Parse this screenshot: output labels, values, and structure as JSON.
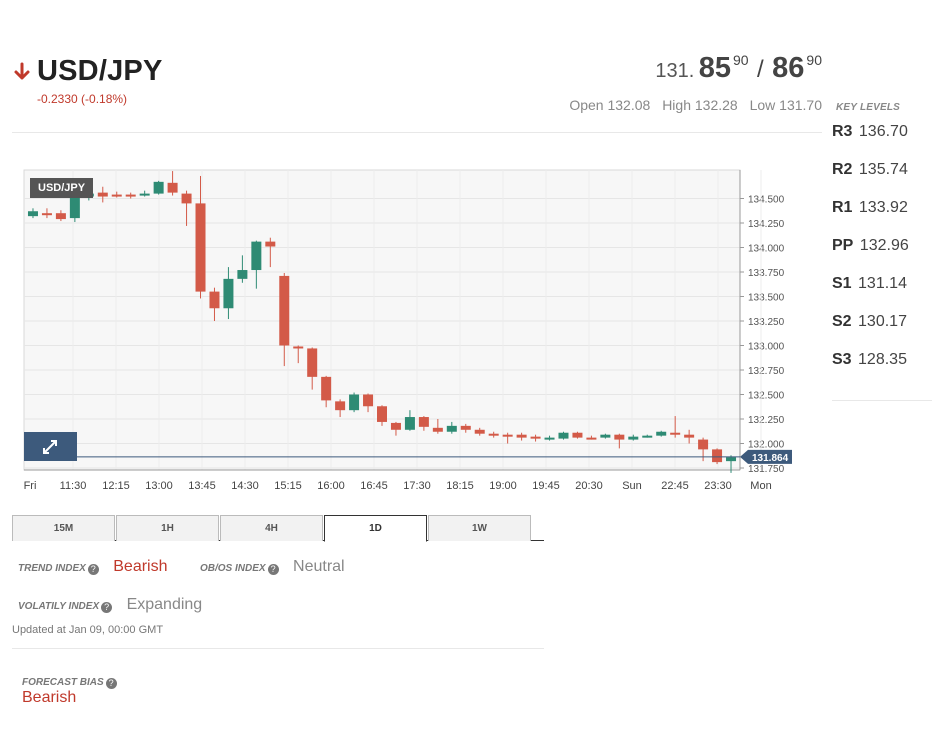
{
  "header": {
    "pair": "USD/JPY",
    "change": "-0.2330 (-0.18%)",
    "bid_prefix": "131.",
    "bid_big": "85",
    "bid_sup": "90",
    "separator": "/",
    "ask_big": "86",
    "ask_sup": "90",
    "open": "Open 132.08",
    "high": "High 132.28",
    "low": "Low 131.70"
  },
  "key_levels": {
    "title": "KEY LEVELS",
    "items": [
      {
        "name": "R3",
        "value": "136.70"
      },
      {
        "name": "R2",
        "value": "135.74"
      },
      {
        "name": "R1",
        "value": "133.92"
      },
      {
        "name": "PP",
        "value": "132.96"
      },
      {
        "name": "S1",
        "value": "131.14"
      },
      {
        "name": "S2",
        "value": "130.17"
      },
      {
        "name": "S3",
        "value": "128.35"
      }
    ]
  },
  "chart": {
    "label": "USD/JPY",
    "current_price": "131.864"
  },
  "chart_data": {
    "type": "candlestick",
    "ylim": [
      131.75,
      134.75
    ],
    "y_ticks": [
      "134.500",
      "134.250",
      "134.000",
      "133.750",
      "133.500",
      "133.250",
      "133.000",
      "132.750",
      "132.500",
      "132.250",
      "132.000",
      "131.750"
    ],
    "x_ticks": [
      "Fri",
      "11:30",
      "12:15",
      "13:00",
      "13:45",
      "14:30",
      "15:15",
      "16:00",
      "16:45",
      "17:30",
      "18:15",
      "19:00",
      "19:45",
      "20:30",
      "Sun",
      "22:45",
      "23:30",
      "Mon"
    ],
    "last_price": 131.864,
    "candles": [
      {
        "o": 134.32,
        "c": 134.37,
        "h": 134.4,
        "l": 134.3
      },
      {
        "o": 134.35,
        "c": 134.35,
        "h": 134.4,
        "l": 134.3
      },
      {
        "o": 134.35,
        "c": 134.29,
        "h": 134.38,
        "l": 134.27
      },
      {
        "o": 134.3,
        "c": 134.52,
        "h": 134.56,
        "l": 134.26
      },
      {
        "o": 134.52,
        "c": 134.55,
        "h": 134.6,
        "l": 134.48
      },
      {
        "o": 134.56,
        "c": 134.52,
        "h": 134.62,
        "l": 134.46
      },
      {
        "o": 134.54,
        "c": 134.54,
        "h": 134.57,
        "l": 134.51
      },
      {
        "o": 134.54,
        "c": 134.53,
        "h": 134.56,
        "l": 134.5
      },
      {
        "o": 134.53,
        "c": 134.55,
        "h": 134.58,
        "l": 134.52
      },
      {
        "o": 134.55,
        "c": 134.67,
        "h": 134.68,
        "l": 134.54
      },
      {
        "o": 134.66,
        "c": 134.56,
        "h": 134.78,
        "l": 134.53
      },
      {
        "o": 134.55,
        "c": 134.45,
        "h": 134.58,
        "l": 134.22
      },
      {
        "o": 134.45,
        "c": 133.55,
        "h": 134.73,
        "l": 133.48
      },
      {
        "o": 133.55,
        "c": 133.38,
        "h": 133.59,
        "l": 133.25
      },
      {
        "o": 133.38,
        "c": 133.68,
        "h": 133.8,
        "l": 133.27
      },
      {
        "o": 133.68,
        "c": 133.77,
        "h": 133.92,
        "l": 133.64
      },
      {
        "o": 133.77,
        "c": 134.06,
        "h": 134.07,
        "l": 133.58
      },
      {
        "o": 134.06,
        "c": 134.01,
        "h": 134.1,
        "l": 133.8
      },
      {
        "o": 133.71,
        "c": 133.0,
        "h": 133.74,
        "l": 132.79
      },
      {
        "o": 132.99,
        "c": 132.97,
        "h": 133.0,
        "l": 132.82
      },
      {
        "o": 132.97,
        "c": 132.68,
        "h": 132.98,
        "l": 132.55
      },
      {
        "o": 132.68,
        "c": 132.44,
        "h": 132.69,
        "l": 132.37
      },
      {
        "o": 132.43,
        "c": 132.34,
        "h": 132.45,
        "l": 132.27
      },
      {
        "o": 132.34,
        "c": 132.5,
        "h": 132.52,
        "l": 132.32
      },
      {
        "o": 132.5,
        "c": 132.38,
        "h": 132.51,
        "l": 132.32
      },
      {
        "o": 132.38,
        "c": 132.22,
        "h": 132.39,
        "l": 132.18
      },
      {
        "o": 132.21,
        "c": 132.14,
        "h": 132.22,
        "l": 132.08
      },
      {
        "o": 132.14,
        "c": 132.27,
        "h": 132.34,
        "l": 132.13
      },
      {
        "o": 132.27,
        "c": 132.17,
        "h": 132.28,
        "l": 132.13
      },
      {
        "o": 132.16,
        "c": 132.12,
        "h": 132.25,
        "l": 132.1
      },
      {
        "o": 132.12,
        "c": 132.18,
        "h": 132.22,
        "l": 132.1
      },
      {
        "o": 132.18,
        "c": 132.14,
        "h": 132.2,
        "l": 132.11
      },
      {
        "o": 132.14,
        "c": 132.1,
        "h": 132.16,
        "l": 132.08
      },
      {
        "o": 132.1,
        "c": 132.09,
        "h": 132.12,
        "l": 132.06
      },
      {
        "o": 132.09,
        "c": 132.08,
        "h": 132.11,
        "l": 132.0
      },
      {
        "o": 132.09,
        "c": 132.06,
        "h": 132.11,
        "l": 132.03
      },
      {
        "o": 132.07,
        "c": 132.05,
        "h": 132.09,
        "l": 132.02
      },
      {
        "o": 132.05,
        "c": 132.06,
        "h": 132.08,
        "l": 132.03
      },
      {
        "o": 132.05,
        "c": 132.11,
        "h": 132.12,
        "l": 132.04
      },
      {
        "o": 132.11,
        "c": 132.06,
        "h": 132.12,
        "l": 132.05
      },
      {
        "o": 132.06,
        "c": 132.06,
        "h": 132.08,
        "l": 132.04
      },
      {
        "o": 132.06,
        "c": 132.09,
        "h": 132.1,
        "l": 132.05
      },
      {
        "o": 132.09,
        "c": 132.04,
        "h": 132.1,
        "l": 131.95
      },
      {
        "o": 132.04,
        "c": 132.07,
        "h": 132.09,
        "l": 132.03
      },
      {
        "o": 132.07,
        "c": 132.08,
        "h": 132.09,
        "l": 132.06
      },
      {
        "o": 132.08,
        "c": 132.12,
        "h": 132.13,
        "l": 132.07
      },
      {
        "o": 132.11,
        "c": 132.09,
        "h": 132.28,
        "l": 132.06
      },
      {
        "o": 132.09,
        "c": 132.06,
        "h": 132.14,
        "l": 132.0
      },
      {
        "o": 132.04,
        "c": 131.94,
        "h": 132.06,
        "l": 131.82
      },
      {
        "o": 131.94,
        "c": 131.81,
        "h": 131.95,
        "l": 131.79
      },
      {
        "o": 131.82,
        "c": 131.86,
        "h": 131.88,
        "l": 131.7
      }
    ]
  },
  "timeframes": {
    "items": [
      "15M",
      "1H",
      "4H",
      "1D",
      "1W"
    ],
    "active": "1D"
  },
  "indices": {
    "trend_label": "TREND INDEX",
    "trend_value": "Bearish",
    "obos_label": "OB/OS INDEX",
    "obos_value": "Neutral",
    "volatility_label": "VOLATILY INDEX",
    "volatility_value": "Expanding",
    "updated": "Updated at Jan 09, 00:00 GMT"
  },
  "forecast": {
    "label": "FORECAST BIAS",
    "value": "Bearish"
  },
  "colors": {
    "bear": "#d35a48",
    "bull": "#2e8b74",
    "accent": "#3d5a7c"
  }
}
